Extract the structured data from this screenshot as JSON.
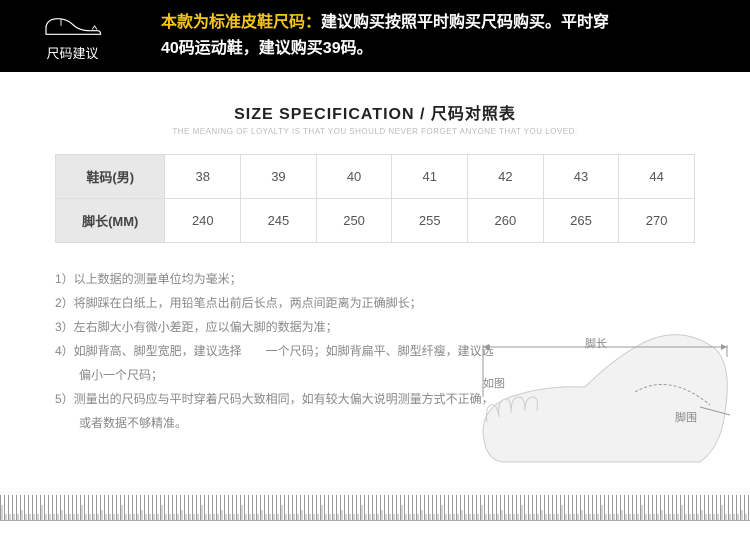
{
  "header": {
    "left_label": "尺码建议",
    "highlight": "本款为标准皮鞋尺码：",
    "text1": "建议购买按照平时购买尺码购买。平时穿",
    "text2": "40码运动鞋，建议购买39码。"
  },
  "title": {
    "main_en": "SIZE SPECIFICATION",
    "sep": " / ",
    "main_cn": "尺码对照表",
    "sub": "THE MEANING OF LOYALTY IS THAT YOU SHOULD NEVER FORGET ANYONE THAT YOU LOVED."
  },
  "table": {
    "row1_header": "鞋码(男)",
    "row2_header": "脚长(MM)",
    "row1": [
      "38",
      "39",
      "40",
      "41",
      "42",
      "43",
      "44"
    ],
    "row2": [
      "240",
      "245",
      "250",
      "255",
      "260",
      "265",
      "270"
    ]
  },
  "notes": {
    "n1": "1）以上数据的测量单位均为毫米；",
    "n2": "2）将脚踩在白纸上，用铅笔点出前后长点，两点间距离为正确脚长；",
    "n3": "3）左右脚大小有微小差距，应以偏大脚的数据为准；",
    "n4a": "4）如脚背高、脚型宽肥，建议选择　　一个尺码；如脚背扁平、脚型纤瘦，建议选",
    "n4b": "　　偏小一个尺码；",
    "n5a": "5）测量出的尺码应与平时穿着尺码大致相同，如有较大偏大说明测量方式不正确，",
    "n5b": "　　或者数据不够精准。"
  },
  "diagram": {
    "length_label": "脚长",
    "ruli_label": "如图",
    "circ_label": "脚围"
  },
  "colors": {
    "header_bg": "#000000",
    "highlight": "#f5c518",
    "white": "#ffffff",
    "table_header_bg": "#e8e8e8",
    "border": "#dddddd",
    "note_text": "#888888"
  }
}
